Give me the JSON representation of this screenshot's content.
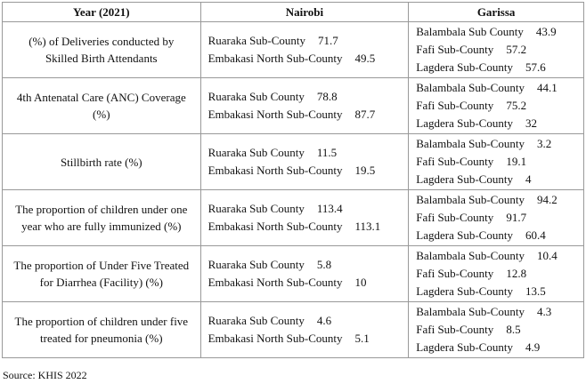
{
  "table": {
    "header": [
      "Year (2021)",
      "Nairobi",
      "Garissa"
    ],
    "rows": [
      {
        "indicator": "(%) of Deliveries conducted by Skilled Birth Attendants",
        "nairobi": [
          {
            "name": "Ruaraka Sub-County",
            "value": "71.7"
          },
          {
            "name": "Embakasi North Sub-County",
            "value": "49.5"
          }
        ],
        "garissa": [
          {
            "name": "Balambala Sub County",
            "value": "43.9"
          },
          {
            "name": "Fafi Sub-County",
            "value": "57.2"
          },
          {
            "name": "Lagdera Sub-County",
            "value": "57.6"
          }
        ]
      },
      {
        "indicator": "4th Antenatal Care (ANC) Coverage (%)",
        "nairobi": [
          {
            "name": "Ruaraka Sub County",
            "value": "78.8"
          },
          {
            "name": "Embakasi North Sub-County",
            "value": "87.7"
          }
        ],
        "garissa": [
          {
            "name": "Balambala Sub-County",
            "value": "44.1"
          },
          {
            "name": "Fafi Sub-County",
            "value": "75.2"
          },
          {
            "name": "Lagdera Sub-County",
            "value": "32"
          }
        ]
      },
      {
        "indicator": "Stillbirth rate (%)",
        "nairobi": [
          {
            "name": "Ruaraka Sub County",
            "value": "11.5"
          },
          {
            "name": "Embakasi North Sub-County",
            "value": "19.5"
          }
        ],
        "garissa": [
          {
            "name": "Balambala Sub-County",
            "value": "3.2"
          },
          {
            "name": "Fafi Sub-County",
            "value": "19.1"
          },
          {
            "name": "Lagdera Sub-County",
            "value": "4"
          }
        ]
      },
      {
        "indicator": "The proportion of children under one year who are fully immunized (%)",
        "nairobi": [
          {
            "name": "Ruaraka Sub County",
            "value": "113.4"
          },
          {
            "name": "Embakasi North Sub-County",
            "value": "113.1"
          }
        ],
        "garissa": [
          {
            "name": "Balambala Sub-County",
            "value": "94.2"
          },
          {
            "name": "Fafi Sub-County",
            "value": "91.7"
          },
          {
            "name": "Lagdera Sub-County",
            "value": "60.4"
          }
        ]
      },
      {
        "indicator": "The proportion of Under Five Treated for Diarrhea (Facility) (%)",
        "nairobi": [
          {
            "name": "Ruaraka Sub County",
            "value": "5.8"
          },
          {
            "name": "Embakasi North Sub-County",
            "value": "10"
          }
        ],
        "garissa": [
          {
            "name": "Balambala Sub-County",
            "value": "10.4"
          },
          {
            "name": "Fafi Sub-County",
            "value": "12.8"
          },
          {
            "name": "Lagdera Sub-County",
            "value": "13.5"
          }
        ]
      },
      {
        "indicator": "The proportion of children under five treated for pneumonia (%)",
        "nairobi": [
          {
            "name": "Ruaraka Sub County",
            "value": "4.6"
          },
          {
            "name": "Embakasi North Sub-County",
            "value": "5.1"
          }
        ],
        "garissa": [
          {
            "name": "Balambala Sub-County",
            "value": "4.3"
          },
          {
            "name": "Fafi Sub-County",
            "value": "8.5"
          },
          {
            "name": "Lagdera Sub-County",
            "value": "4.9"
          }
        ]
      }
    ]
  },
  "source": "Source: KHIS 2022"
}
